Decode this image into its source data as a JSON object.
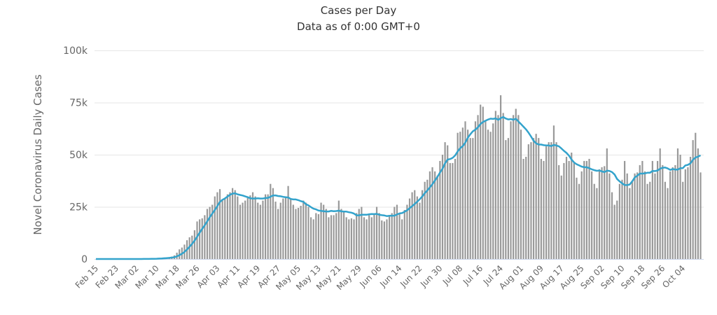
{
  "chart_data": {
    "type": "bar",
    "title": "Cases per Day",
    "subtitle": "Data as of 0:00 GMT+0",
    "ylabel": "Novel Coronavirus Daily Cases",
    "xlabel": "",
    "ylim": [
      0,
      100000
    ],
    "y_ticks": [
      0,
      25000,
      50000,
      75000,
      100000
    ],
    "y_tick_labels": [
      "0",
      "25k",
      "50k",
      "75k",
      "100k"
    ],
    "x_start": "Feb 15",
    "x_end": "Oct 11",
    "x_tick_labels": [
      "Feb 15",
      "Feb 23",
      "Mar 02",
      "Mar 10",
      "Mar 18",
      "Mar 26",
      "Apr 03",
      "Apr 11",
      "Apr 19",
      "Apr 27",
      "May 05",
      "May 13",
      "May 21",
      "May 29",
      "Jun 06",
      "Jun 14",
      "Jun 22",
      "Jun 30",
      "Jul 08",
      "Jul 16",
      "Jul 24",
      "Aug 01",
      "Aug 09",
      "Aug 17",
      "Aug 25",
      "Sep 02",
      "Sep 10",
      "Sep 18",
      "Sep 26",
      "Oct 04"
    ],
    "grid": true,
    "legend": "none",
    "colors": {
      "bars": "#999999",
      "line": "#33a3cc",
      "grid": "#e6e6e6",
      "axis": "#ccd6eb"
    },
    "series": [
      {
        "kind": "bar",
        "values": [
          0,
          0,
          0,
          0,
          0,
          0,
          1,
          0,
          0,
          0,
          5,
          0,
          1,
          0,
          3,
          8,
          20,
          24,
          22,
          76,
          66,
          115,
          121,
          179,
          292,
          448,
          524,
          722,
          727,
          778,
          1167,
          1739,
          3042,
          4629,
          5494,
          6906,
          9000,
          10400,
          11200,
          13800,
          18000,
          19000,
          19500,
          21000,
          24000,
          25000,
          26000,
          30000,
          32000,
          33500,
          28000,
          29000,
          31000,
          32000,
          34000,
          33000,
          30000,
          26000,
          27000,
          28000,
          29500,
          30500,
          32000,
          30000,
          27000,
          26000,
          28000,
          31000,
          31000,
          36000,
          34000,
          27500,
          24000,
          27000,
          29000,
          30000,
          35000,
          29000,
          26000,
          24000,
          24500,
          25500,
          28000,
          27000,
          25000,
          20000,
          19000,
          22000,
          21500,
          27000,
          26000,
          24000,
          20000,
          21000,
          21000,
          22000,
          28000,
          24000,
          23000,
          20000,
          19000,
          19500,
          19000,
          22000,
          24000,
          25000,
          20000,
          19000,
          21000,
          20000,
          21500,
          25000,
          22000,
          18500,
          18000,
          19000,
          21000,
          22000,
          25000,
          26000,
          22000,
          19000,
          23500,
          26000,
          29000,
          32000,
          33000,
          30000,
          27000,
          33000,
          37000,
          38000,
          42000,
          44000,
          42000,
          40000,
          47000,
          50000,
          56000,
          54500,
          46000,
          46000,
          48000,
          60500,
          61000,
          63000,
          66000,
          62000,
          58000,
          58000,
          66000,
          69000,
          74000,
          73000,
          66000,
          62000,
          61000,
          65000,
          71000,
          69000,
          78500,
          70000,
          57000,
          58000,
          66000,
          69000,
          72000,
          69000,
          62000,
          48000,
          49000,
          55000,
          56000,
          58000,
          60000,
          58000,
          48000,
          47000,
          54000,
          56000,
          56000,
          64000,
          56000,
          45000,
          40000,
          46000,
          49000,
          47000,
          51000,
          46000,
          39000,
          36000,
          42000,
          47000,
          47000,
          48000,
          42000,
          36000,
          34000,
          43000,
          44000,
          44500,
          53000,
          41000,
          32000,
          26000,
          28000,
          36000,
          38000,
          47000,
          41000,
          34000,
          37000,
          41000,
          41500,
          45000,
          47000,
          42000,
          36000,
          37000,
          47000,
          41000,
          47000,
          53000,
          45000,
          37000,
          34000,
          42000,
          44000,
          45000,
          53000,
          50000,
          37000,
          43000,
          44000,
          49000,
          57000,
          60500,
          53000,
          41500
        ]
      },
      {
        "kind": "line",
        "of": "moving-average"
      }
    ]
  }
}
